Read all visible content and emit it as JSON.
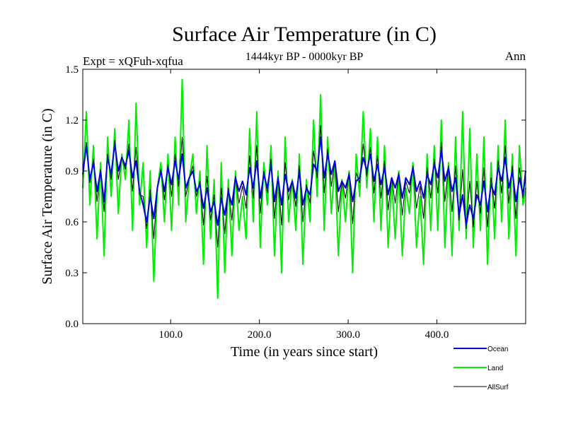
{
  "chart_data": {
    "type": "line",
    "title": "Surface Air Temperature (in C)",
    "subtitle": "1444kyr BP - 0000kyr BP",
    "experiment_label": "Expt = xQFuh-xqfua",
    "season_label": "Ann",
    "xlabel": "Time (in years since start)",
    "ylabel": "Surface Air Temperature (in C)",
    "xlim": [
      1,
      500
    ],
    "ylim": [
      0.0,
      1.5
    ],
    "x_ticks": [
      100,
      200,
      300,
      400
    ],
    "x_tick_labels": [
      "100.0",
      "200.0",
      "300.0",
      "400.0"
    ],
    "y_ticks": [
      0.0,
      0.3,
      0.6,
      0.9,
      1.2,
      1.5
    ],
    "y_tick_labels": [
      "0.0",
      "0.3",
      "0.6",
      "0.9",
      "1.2",
      "1.5"
    ],
    "legend_position": "bottom-right, below plot",
    "series": [
      {
        "name": "Land",
        "color": "#00ee00",
        "x_start": 1,
        "x_step": 4,
        "values": [
          0.8,
          1.25,
          0.7,
          1.05,
          0.5,
          0.95,
          0.4,
          1.1,
          0.75,
          1.15,
          0.65,
          1.0,
          0.85,
          1.2,
          0.55,
          1.3,
          0.7,
          0.95,
          0.45,
          0.9,
          0.25,
          0.8,
          0.95,
          0.6,
          1.0,
          0.55,
          1.1,
          0.7,
          1.44,
          0.6,
          0.85,
          1.0,
          0.65,
          0.9,
          0.35,
          1.05,
          0.5,
          0.85,
          0.15,
          0.95,
          0.3,
          0.85,
          0.4,
          0.9,
          0.55,
          0.75,
          0.5,
          1.15,
          0.6,
          1.25,
          0.45,
          0.95,
          0.7,
          1.05,
          0.4,
          0.9,
          0.3,
          1.1,
          0.6,
          0.85,
          0.55,
          1.0,
          0.35,
          0.85,
          0.6,
          1.2,
          0.75,
          1.35,
          0.55,
          1.1,
          0.65,
          0.95,
          0.4,
          0.85,
          0.6,
          0.9,
          0.3,
          1.0,
          0.75,
          1.25,
          0.8,
          1.15,
          0.6,
          1.1,
          0.55,
          1.05,
          0.45,
          0.85,
          0.5,
          0.9,
          0.4,
          0.8,
          0.65,
          0.95,
          0.45,
          0.75,
          0.35,
          1.0,
          0.55,
          1.05,
          0.55,
          1.2,
          0.45,
          0.95,
          0.4,
          1.1,
          0.55,
          1.25,
          0.5,
          1.15,
          0.45,
          1.0,
          0.55,
          1.1,
          0.35,
          0.95,
          0.5,
          1.05,
          0.6,
          1.2,
          0.5,
          1.0,
          0.4,
          1.05,
          0.7,
          0.8
        ]
      },
      {
        "name": "Ocean",
        "color": "#0000dd",
        "x_start": 1,
        "x_step": 4,
        "values": [
          0.88,
          1.05,
          0.85,
          0.95,
          0.78,
          0.9,
          0.72,
          0.98,
          0.88,
          1.06,
          0.9,
          0.98,
          0.93,
          1.02,
          0.86,
          0.96,
          0.78,
          0.7,
          0.6,
          0.75,
          0.62,
          0.8,
          0.9,
          0.78,
          0.92,
          0.82,
          0.96,
          0.85,
          1.0,
          0.8,
          0.86,
          0.9,
          0.78,
          0.82,
          0.68,
          0.8,
          0.66,
          0.72,
          0.58,
          0.74,
          0.64,
          0.78,
          0.7,
          0.86,
          0.78,
          0.84,
          0.76,
          0.92,
          0.8,
          0.96,
          0.74,
          0.88,
          0.8,
          0.94,
          0.72,
          0.86,
          0.7,
          0.88,
          0.78,
          0.84,
          0.74,
          0.9,
          0.7,
          0.8,
          0.76,
          0.94,
          0.9,
          1.1,
          0.86,
          1.0,
          0.88,
          0.96,
          0.78,
          0.84,
          0.8,
          0.88,
          0.72,
          0.84,
          0.86,
          0.98,
          0.9,
          1.0,
          0.84,
          0.94,
          0.82,
          0.92,
          0.76,
          0.86,
          0.8,
          0.88,
          0.74,
          0.86,
          0.82,
          0.92,
          0.78,
          0.84,
          0.74,
          0.88,
          0.82,
          0.94,
          0.86,
          1.02,
          0.84,
          0.92,
          0.78,
          0.86,
          0.64,
          0.76,
          0.58,
          0.7,
          0.62,
          0.76,
          0.7,
          0.84,
          0.66,
          0.82,
          0.76,
          0.92,
          0.84,
          0.98,
          0.8,
          0.9,
          0.72,
          0.86,
          0.76,
          0.9
        ]
      },
      {
        "name": "AllSurf",
        "color": "#000000",
        "x_start": 1,
        "x_step": 4,
        "values": [
          0.86,
          1.07,
          0.83,
          0.97,
          0.72,
          0.91,
          0.66,
          1.0,
          0.85,
          1.08,
          0.85,
          0.98,
          0.91,
          1.06,
          0.78,
          1.04,
          0.76,
          0.75,
          0.56,
          0.79,
          0.5,
          0.8,
          0.91,
          0.73,
          0.94,
          0.75,
          1.0,
          0.81,
          1.1,
          0.75,
          0.86,
          0.93,
          0.75,
          0.84,
          0.58,
          0.87,
          0.61,
          0.76,
          0.45,
          0.8,
          0.53,
          0.8,
          0.61,
          0.87,
          0.71,
          0.81,
          0.68,
          0.99,
          0.74,
          1.05,
          0.65,
          0.9,
          0.77,
          0.97,
          0.62,
          0.87,
          0.58,
          0.95,
          0.73,
          0.84,
          0.69,
          0.93,
          0.6,
          0.82,
          0.71,
          1.02,
          0.86,
          1.17,
          0.77,
          1.03,
          0.81,
          0.96,
          0.66,
          0.84,
          0.74,
          0.89,
          0.59,
          0.89,
          0.83,
          1.06,
          0.87,
          1.04,
          0.77,
          0.99,
          0.74,
          0.96,
          0.67,
          0.86,
          0.71,
          0.89,
          0.64,
          0.84,
          0.77,
          0.93,
          0.68,
          0.81,
          0.62,
          0.92,
          0.74,
          0.97,
          0.77,
          1.07,
          0.72,
          0.93,
          0.66,
          0.93,
          0.61,
          0.91,
          0.56,
          0.84,
          0.57,
          0.84,
          0.65,
          0.92,
          0.57,
          0.86,
          0.68,
          0.96,
          0.77,
          1.05,
          0.71,
          0.93,
          0.62,
          0.92,
          0.74,
          0.87
        ]
      }
    ]
  }
}
